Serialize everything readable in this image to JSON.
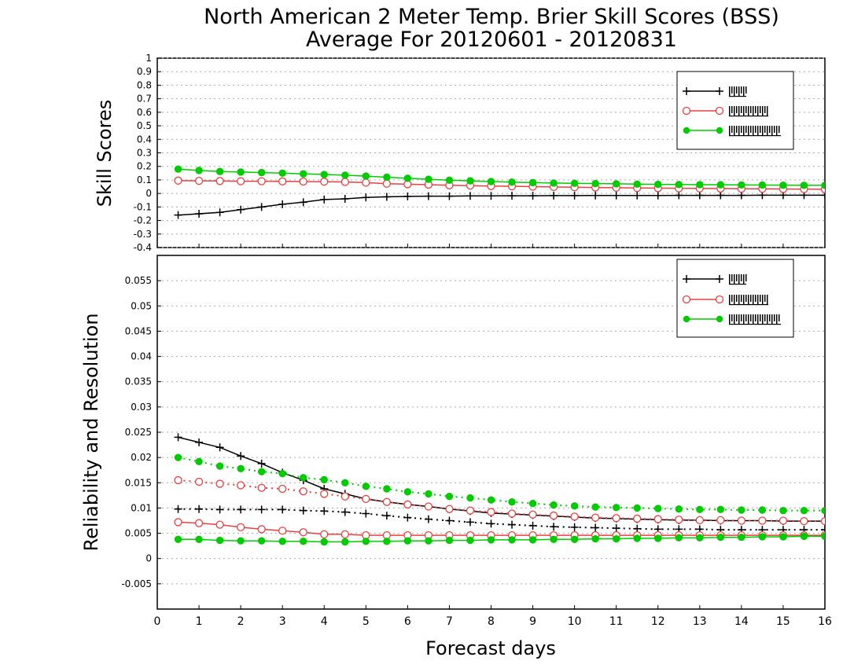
{
  "title_line1": "North American 2 Meter Temp. Brier Skill Scores (BSS)",
  "title_line2": "Average For 20120601 - 20120831",
  "xlabel": "Forecast days",
  "colors": {
    "series_1": "#000000",
    "series_2": "#e84040",
    "series_3": "#00cc00",
    "grid": "#aaaaaa"
  },
  "chart_data": [
    {
      "type": "line",
      "ylabel": "Skill Scores",
      "ylim": [
        -0.4,
        1.0
      ],
      "yticks": [
        "1",
        "0.9",
        "0.8",
        "0.7",
        "0.6",
        "0.5",
        "0.4",
        "0.3",
        "0.2",
        "0.1",
        "0",
        "-0.1",
        "-0.2",
        "-0.3",
        "-0.4"
      ],
      "xlim": [
        0,
        16
      ],
      "xticks": [
        "0",
        "1",
        "2",
        "3",
        "4",
        "5",
        "6",
        "7",
        "8",
        "9",
        "10",
        "11",
        "12",
        "13",
        "14",
        "15",
        "16"
      ],
      "grid": true,
      "legend_position": "top-right",
      "x": [
        0.5,
        1,
        1.5,
        2,
        2.5,
        3,
        3.5,
        4,
        4.5,
        5,
        5.5,
        6,
        6.5,
        7,
        7.5,
        8,
        8.5,
        9,
        9.5,
        10,
        10.5,
        11,
        11.5,
        12,
        12.5,
        13,
        13.5,
        14,
        14.5,
        15,
        15.5,
        16
      ],
      "series": [
        {
          "marker": "plus",
          "color_key": "series_1",
          "values": [
            -0.16,
            -0.15,
            -0.14,
            -0.12,
            -0.1,
            -0.08,
            -0.065,
            -0.045,
            -0.04,
            -0.03,
            -0.025,
            -0.022,
            -0.02,
            -0.02,
            -0.018,
            -0.018,
            -0.017,
            -0.017,
            -0.016,
            -0.016,
            -0.015,
            -0.015,
            -0.015,
            -0.015,
            -0.014,
            -0.014,
            -0.014,
            -0.014,
            -0.013,
            -0.013,
            -0.013,
            -0.013
          ]
        },
        {
          "marker": "open-circle",
          "color_key": "series_2",
          "values": [
            0.095,
            0.093,
            0.092,
            0.09,
            0.09,
            0.089,
            0.088,
            0.087,
            0.085,
            0.08,
            0.072,
            0.068,
            0.065,
            0.06,
            0.058,
            0.055,
            0.053,
            0.05,
            0.048,
            0.046,
            0.044,
            0.042,
            0.04,
            0.039,
            0.038,
            0.037,
            0.036,
            0.035,
            0.034,
            0.033,
            0.032,
            0.031
          ]
        },
        {
          "marker": "filled-circle",
          "color_key": "series_3",
          "values": [
            0.18,
            0.17,
            0.162,
            0.158,
            0.154,
            0.15,
            0.145,
            0.14,
            0.135,
            0.128,
            0.12,
            0.112,
            0.105,
            0.098,
            0.093,
            0.088,
            0.084,
            0.08,
            0.077,
            0.075,
            0.073,
            0.071,
            0.069,
            0.067,
            0.066,
            0.065,
            0.064,
            0.063,
            0.062,
            0.061,
            0.06,
            0.06
          ]
        }
      ]
    },
    {
      "type": "line",
      "ylabel": "Reliability and Resolution",
      "ylim": [
        -0.01,
        0.06
      ],
      "yticks": [
        "0.055",
        "0.05",
        "0.045",
        "0.04",
        "0.035",
        "0.03",
        "0.025",
        "0.02",
        "0.015",
        "0.01",
        "0.005",
        "0",
        "-0.005"
      ],
      "xlim": [
        0,
        16
      ],
      "xticks": [
        "0",
        "1",
        "2",
        "3",
        "4",
        "5",
        "6",
        "7",
        "8",
        "9",
        "10",
        "11",
        "12",
        "13",
        "14",
        "15",
        "16"
      ],
      "grid": true,
      "legend_position": "top-right",
      "x": [
        0.5,
        1,
        1.5,
        2,
        2.5,
        3,
        3.5,
        4,
        4.5,
        5,
        5.5,
        6,
        6.5,
        7,
        7.5,
        8,
        8.5,
        9,
        9.5,
        10,
        10.5,
        11,
        11.5,
        12,
        12.5,
        13,
        13.5,
        14,
        14.5,
        15,
        15.5,
        16
      ],
      "series": [
        {
          "marker": "plus",
          "style": "solid",
          "color_key": "series_1",
          "values": [
            0.024,
            0.023,
            0.022,
            0.0203,
            0.0188,
            0.017,
            0.0155,
            0.0138,
            0.0128,
            0.0118,
            0.0112,
            0.0107,
            0.0103,
            0.0098,
            0.0094,
            0.009,
            0.0088,
            0.0086,
            0.0084,
            0.0082,
            0.008,
            0.0079,
            0.0078,
            0.0077,
            0.0076,
            0.0076,
            0.0075,
            0.0075,
            0.0075,
            0.0074,
            0.0074,
            0.0074
          ]
        },
        {
          "marker": "plus",
          "style": "dotted",
          "color_key": "series_1",
          "values": [
            0.0098,
            0.0098,
            0.0097,
            0.0097,
            0.0097,
            0.0097,
            0.0095,
            0.0094,
            0.0092,
            0.0089,
            0.0085,
            0.0081,
            0.0078,
            0.0075,
            0.0072,
            0.0069,
            0.0067,
            0.0065,
            0.0063,
            0.0062,
            0.0061,
            0.006,
            0.0059,
            0.0058,
            0.0058,
            0.0058,
            0.0057,
            0.0057,
            0.0057,
            0.0057,
            0.0057,
            0.0057
          ]
        },
        {
          "marker": "open-circle",
          "style": "dotted",
          "color_key": "series_2",
          "values": [
            0.0155,
            0.0152,
            0.0148,
            0.0145,
            0.014,
            0.0138,
            0.0133,
            0.0128,
            0.0123,
            0.0118,
            0.0112,
            0.0107,
            0.0103,
            0.0098,
            0.0095,
            0.0092,
            0.0089,
            0.0087,
            0.0085,
            0.0083,
            0.0081,
            0.008,
            0.0079,
            0.0078,
            0.0077,
            0.0076,
            0.0076,
            0.0075,
            0.0075,
            0.0075,
            0.0074,
            0.0074
          ]
        },
        {
          "marker": "open-circle",
          "style": "solid",
          "color_key": "series_2",
          "values": [
            0.0072,
            0.007,
            0.0067,
            0.0062,
            0.0058,
            0.0055,
            0.0052,
            0.0048,
            0.0048,
            0.0046,
            0.0046,
            0.0046,
            0.0046,
            0.0046,
            0.0046,
            0.0046,
            0.0046,
            0.0046,
            0.0046,
            0.0046,
            0.0046,
            0.0046,
            0.0046,
            0.0046,
            0.0046,
            0.0046,
            0.0046,
            0.0046,
            0.0046,
            0.0046,
            0.0046,
            0.0046
          ]
        },
        {
          "marker": "filled-circle",
          "style": "dotted",
          "color_key": "series_3",
          "values": [
            0.02,
            0.0192,
            0.0183,
            0.0178,
            0.0172,
            0.0168,
            0.016,
            0.0156,
            0.015,
            0.0143,
            0.0138,
            0.0132,
            0.0128,
            0.0123,
            0.012,
            0.0116,
            0.0112,
            0.0109,
            0.0106,
            0.0104,
            0.0102,
            0.0101,
            0.01,
            0.0099,
            0.0098,
            0.0097,
            0.0097,
            0.0096,
            0.0096,
            0.0095,
            0.0095,
            0.0095
          ]
        },
        {
          "marker": "filled-circle",
          "style": "solid",
          "color_key": "series_3",
          "values": [
            0.0038,
            0.0038,
            0.0036,
            0.0035,
            0.0035,
            0.0034,
            0.0034,
            0.0033,
            0.0033,
            0.0034,
            0.0034,
            0.0035,
            0.0035,
            0.0036,
            0.0036,
            0.0037,
            0.0037,
            0.0037,
            0.0038,
            0.0038,
            0.0039,
            0.0039,
            0.004,
            0.004,
            0.0041,
            0.0041,
            0.0042,
            0.0042,
            0.0043,
            0.0043,
            0.0044,
            0.0044
          ]
        }
      ]
    }
  ]
}
